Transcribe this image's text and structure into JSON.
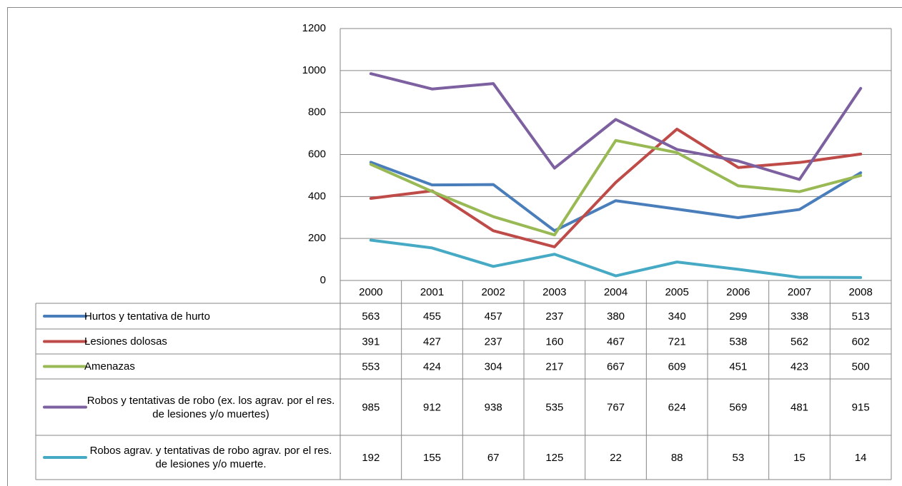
{
  "chart_data": {
    "type": "line",
    "categories": [
      "2000",
      "2001",
      "2002",
      "2003",
      "2004",
      "2005",
      "2006",
      "2007",
      "2008"
    ],
    "series": [
      {
        "name": "Hurtos y tentativa de hurto",
        "color": "#4a7ebb",
        "values": [
          563,
          455,
          457,
          237,
          380,
          340,
          299,
          338,
          513
        ]
      },
      {
        "name": "Lesiones dolosas",
        "color": "#be4b48",
        "values": [
          391,
          427,
          237,
          160,
          467,
          721,
          538,
          562,
          602
        ]
      },
      {
        "name": "Amenazas",
        "color": "#98b954",
        "values": [
          553,
          424,
          304,
          217,
          667,
          609,
          451,
          423,
          500
        ]
      },
      {
        "name": "Robos y tentativas de robo (ex. los agrav. por el res. de lesiones y/o muertes)",
        "color": "#7d60a0",
        "values": [
          985,
          912,
          938,
          535,
          767,
          624,
          569,
          481,
          915
        ]
      },
      {
        "name": "Robos agrav. y tentativas de robo agrav. por el res. de lesiones y/o muerte.",
        "color": "#46aac5",
        "values": [
          192,
          155,
          67,
          125,
          22,
          88,
          53,
          15,
          14
        ]
      }
    ],
    "ylim": [
      0,
      1200
    ],
    "yticks": [
      0,
      200,
      400,
      600,
      800,
      1000,
      1200
    ],
    "grid": true
  }
}
